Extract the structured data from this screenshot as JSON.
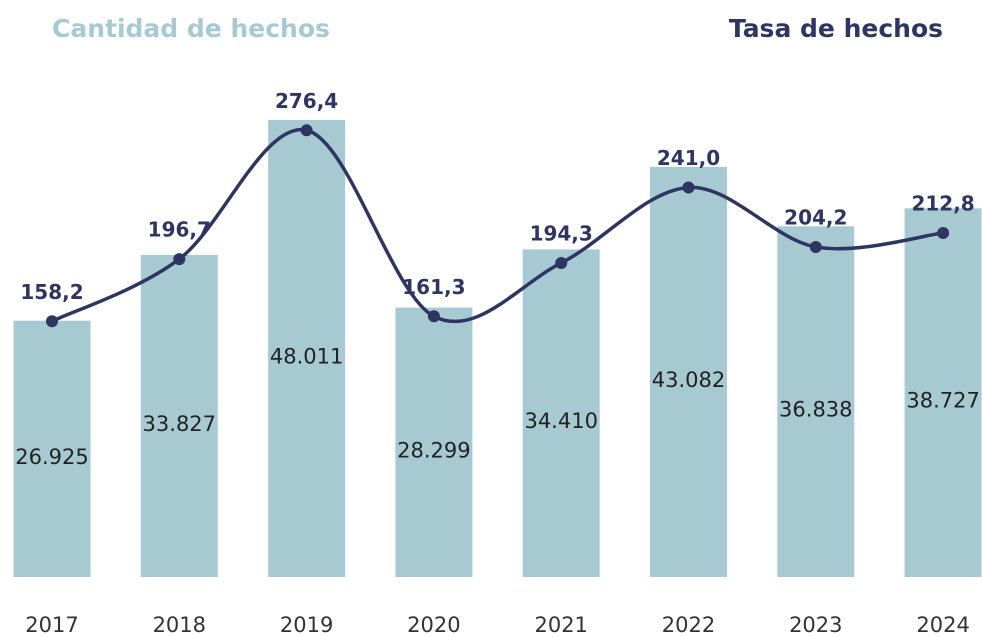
{
  "chart_data": {
    "type": "bar_line",
    "categories": [
      "2017",
      "2018",
      "2019",
      "2020",
      "2021",
      "2022",
      "2023",
      "2024"
    ],
    "series": [
      {
        "name": "Cantidad de hechos",
        "color": "#a7cad2",
        "values": [
          26925,
          33827,
          48011,
          28299,
          34410,
          43082,
          36838,
          38727
        ],
        "value_labels": [
          "26.925",
          "33.827",
          "48.011",
          "28.299",
          "34.410",
          "43.082",
          "36.838",
          "38.727"
        ]
      },
      {
        "name": "Tasa de hechos",
        "color": "#2e3562",
        "axis": "y2",
        "values": [
          158.2,
          196.7,
          276.4,
          161.3,
          194.3,
          241.0,
          204.2,
          212.8
        ],
        "value_labels": [
          "158,2",
          "196,7",
          "276,4",
          "161,3",
          "194,3",
          "241,0",
          "204,2",
          "212,8"
        ]
      }
    ],
    "ylim": [
      0,
      50000
    ],
    "y2lim": [
      0,
      294.5
    ]
  }
}
